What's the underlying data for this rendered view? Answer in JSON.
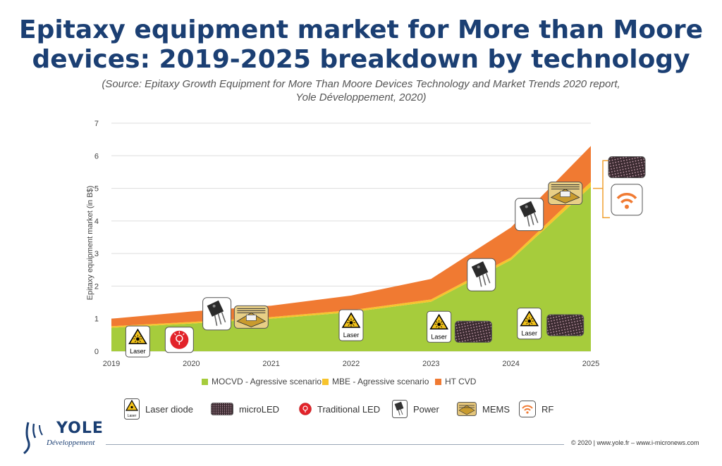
{
  "title_line1": "Epitaxy equipment market for More than Moore",
  "title_line2": "devices: 2019-2025 breakdown by technology",
  "source_line1": "(Source: Epitaxy Growth Equipment for More Than Moore Devices Technology and Market Trends 2020 report,",
  "source_line2": "Yole Développement, 2020)",
  "colors": {
    "mocvd": "#a6cc3c",
    "mbe": "#f7c42e",
    "htcvd": "#f07a32",
    "title": "#1b3f73",
    "grid": "#dddddd"
  },
  "chart_data": {
    "type": "area",
    "stacked": true,
    "x": [
      2019,
      2020,
      2021,
      2022,
      2023,
      2024,
      2025
    ],
    "xlabel": "",
    "ylabel": "Epitaxy equipment market (in B$)",
    "ylim": [
      0,
      7
    ],
    "yticks": [
      0,
      1,
      2,
      3,
      4,
      5,
      6,
      7
    ],
    "grid": true,
    "legend_position": "bottom",
    "series": [
      {
        "name": "MOCVD - Agressive scenario",
        "values": [
          0.72,
          0.85,
          1.0,
          1.2,
          1.52,
          2.8,
          5.05
        ]
      },
      {
        "name": "MBE - Agressive scenario",
        "values": [
          0.05,
          0.05,
          0.05,
          0.06,
          0.07,
          0.08,
          0.15
        ]
      },
      {
        "name": "HT CVD",
        "values": [
          0.23,
          0.32,
          0.35,
          0.45,
          0.63,
          0.92,
          1.1
        ]
      }
    ],
    "annotations": [
      {
        "icon": "laser",
        "label": "Laser",
        "x": 2019.33,
        "y": 0.3
      },
      {
        "icon": "led",
        "x": 2019.85,
        "y": 0.35
      },
      {
        "icon": "power",
        "x": 2020.32,
        "y": 1.15
      },
      {
        "icon": "mems",
        "x": 2020.75,
        "y": 1.05
      },
      {
        "icon": "laser",
        "label": "Laser",
        "x": 2022.0,
        "y": 0.8
      },
      {
        "icon": "laser",
        "label": "Laser",
        "x": 2023.1,
        "y": 0.75
      },
      {
        "icon": "microled",
        "x": 2023.53,
        "y": 0.6
      },
      {
        "icon": "power",
        "x": 2023.63,
        "y": 2.35
      },
      {
        "icon": "power",
        "x": 2024.23,
        "y": 4.2
      },
      {
        "icon": "laser",
        "label": "Laser",
        "x": 2024.23,
        "y": 0.85
      },
      {
        "icon": "microled",
        "x": 2024.68,
        "y": 0.8
      },
      {
        "icon": "mems",
        "x": 2024.68,
        "y": 4.85
      },
      {
        "icon": "microled",
        "x": 2025.45,
        "y": 5.65
      },
      {
        "icon": "rf",
        "x": 2025.45,
        "y": 4.65
      }
    ]
  },
  "legend_items": [
    {
      "label": "MOCVD - Agressive scenario",
      "color": "#a6cc3c"
    },
    {
      "label": "MBE - Agressive scenario",
      "color": "#f7c42e"
    },
    {
      "label": "HT CVD",
      "color": "#f07a32"
    }
  ],
  "icon_legend": {
    "laser_diode": "Laser diode",
    "microled": "microLED",
    "traditional_led": "Traditional LED",
    "power": "Power",
    "mems": "MEMS",
    "rf": "RF",
    "laser_tag": "Laser"
  },
  "logo": {
    "name": "YOLE",
    "sub": "Développement"
  },
  "copyright": "© 2020 | www.yole.fr – www.i-micronews.com"
}
